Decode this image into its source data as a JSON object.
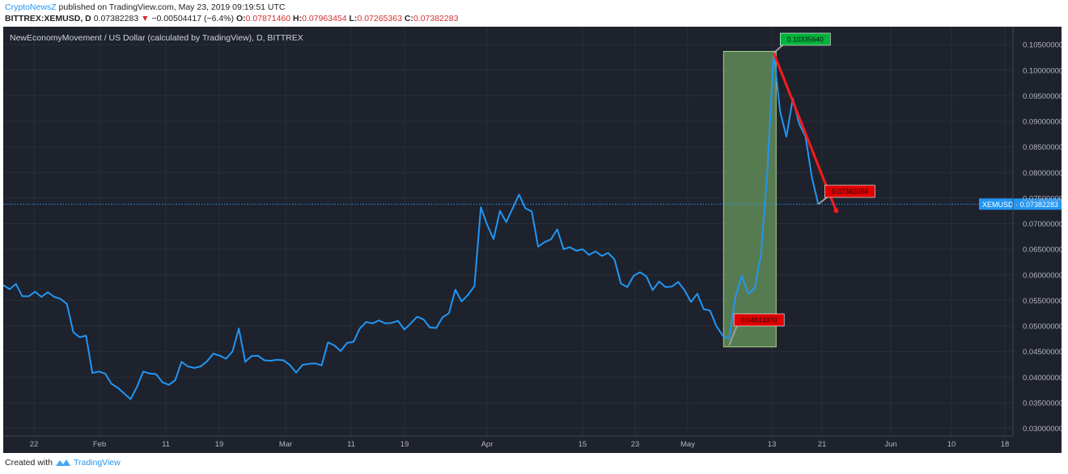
{
  "header": {
    "author": "CryptoNewsZ",
    "published_text": "published on TradingView.com, May 23, 2019 09:19:51 UTC"
  },
  "quote": {
    "symbol": "BITTREX:XEMUSD, D",
    "last": "0.07382283",
    "change_arrow": "▼",
    "change": "−0.00504417 (−6.4%)",
    "open_label": "O:",
    "open": "0.07871460",
    "high_label": "H:",
    "high": "0.07963454",
    "low_label": "L:",
    "low": "0.07265363",
    "close_label": "C:",
    "close": "0.07382283"
  },
  "footer": {
    "created_with": "Created with",
    "brand": "TradingView"
  },
  "colors": {
    "background": "#1e222d",
    "grid": "#2a2e39",
    "line": "#2196f3",
    "text": "#b2b5be",
    "highlight_fill": "#6b9a5e",
    "trend": "#ff1a1a",
    "label_green": "#00b33c",
    "label_red": "#e00000"
  },
  "chart_data": {
    "type": "line",
    "title": "NewEconomyMovement / US Dollar (calculated by TradingView), D, BITTREX",
    "xlabel": "",
    "ylabel": "",
    "x_ticks": [
      "22",
      "Feb",
      "11",
      "19",
      "Mar",
      "11",
      "19",
      "Apr",
      "15",
      "23",
      "May",
      "13",
      "21",
      "Jun",
      "10",
      "18"
    ],
    "y_ticks": [
      "0.10500000",
      "0.10000000",
      "0.09500000",
      "0.09000000",
      "0.08500000",
      "0.08000000",
      "0.07500000",
      "0.07000000",
      "0.06500000",
      "0.06000000",
      "0.05500000",
      "0.05000000",
      "0.04500000",
      "0.04000000",
      "0.03500000",
      "0.03000000"
    ],
    "ylim": [
      0.0285,
      0.1085
    ],
    "grid": true,
    "series": [
      {
        "name": "XEMUSD",
        "values": [
          0.058,
          0.0572,
          0.0582,
          0.0558,
          0.0558,
          0.0567,
          0.0557,
          0.0566,
          0.0557,
          0.0553,
          0.0543,
          0.0488,
          0.0478,
          0.0481,
          0.0408,
          0.0411,
          0.0407,
          0.0387,
          0.0379,
          0.0368,
          0.0357,
          0.0381,
          0.0411,
          0.0407,
          0.0406,
          0.039,
          0.0385,
          0.0394,
          0.043,
          0.0421,
          0.0418,
          0.0421,
          0.0431,
          0.0446,
          0.0442,
          0.0436,
          0.045,
          0.0495,
          0.043,
          0.0441,
          0.0442,
          0.0433,
          0.0432,
          0.0434,
          0.0433,
          0.0424,
          0.0409,
          0.0424,
          0.0426,
          0.0427,
          0.0423,
          0.0468,
          0.0462,
          0.0451,
          0.0467,
          0.0469,
          0.0495,
          0.0508,
          0.0505,
          0.0511,
          0.0505,
          0.0506,
          0.051,
          0.0493,
          0.0505,
          0.0518,
          0.0513,
          0.0497,
          0.0496,
          0.0517,
          0.0525,
          0.0571,
          0.0548,
          0.0561,
          0.0578,
          0.0732,
          0.0698,
          0.067,
          0.0725,
          0.0703,
          0.073,
          0.0757,
          0.073,
          0.0724,
          0.0655,
          0.0664,
          0.0669,
          0.0689,
          0.065,
          0.0654,
          0.0647,
          0.065,
          0.0639,
          0.0646,
          0.0637,
          0.0643,
          0.063,
          0.0583,
          0.0576,
          0.0598,
          0.0605,
          0.0597,
          0.057,
          0.0587,
          0.0576,
          0.0577,
          0.0586,
          0.057,
          0.0547,
          0.0563,
          0.0533,
          0.053,
          0.05,
          0.0481,
          0.0475,
          0.0558,
          0.0598,
          0.0563,
          0.0573,
          0.064,
          0.08,
          0.1034,
          0.092,
          0.087,
          0.0945,
          0.0895,
          0.087,
          0.079,
          0.0738
        ]
      }
    ],
    "current_label": "XEMUSD",
    "current_value": 0.07382283,
    "current_text": "0.07382283",
    "annotations": [
      {
        "text": "0.10335640",
        "value": 0.1033564,
        "kind": "high"
      },
      {
        "text": "0.04813370",
        "value": 0.0481337,
        "kind": "low"
      },
      {
        "text": "0.07382064",
        "value": 0.07382064,
        "kind": "target"
      }
    ]
  }
}
